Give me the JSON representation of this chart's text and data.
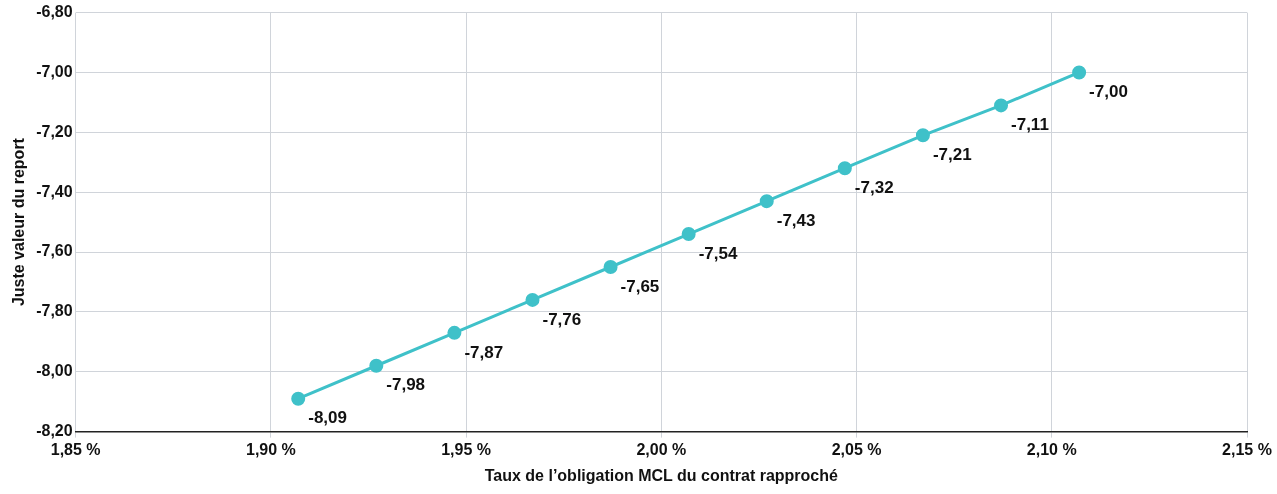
{
  "chart_data": {
    "type": "line",
    "xlabel": "Taux de l’obligation MCL du contrat rapproché",
    "ylabel": "Juste valeur du report",
    "x": [
      1.907,
      1.927,
      1.947,
      1.967,
      1.987,
      2.007,
      2.027,
      2.047,
      2.067,
      2.087,
      2.107
    ],
    "series": [
      {
        "color": "#3fc1c9",
        "values": [
          -8.09,
          -7.98,
          -7.87,
          -7.76,
          -7.65,
          -7.54,
          -7.43,
          -7.32,
          -7.21,
          -7.11,
          -7.0
        ],
        "value_labels": [
          "-8,09",
          "-7,98",
          "-7,87",
          "-7,76",
          "-7,65",
          "-7,54",
          "-7,43",
          "-7,32",
          "-7,21",
          "-7,11",
          "-7,00"
        ]
      }
    ],
    "xlim": [
      1.85,
      2.15
    ],
    "xticks": [
      {
        "value": 1.85,
        "label": "1,85 %"
      },
      {
        "value": 1.9,
        "label": "1,90 %"
      },
      {
        "value": 1.95,
        "label": "1,95 %"
      },
      {
        "value": 2.0,
        "label": "2,00 %"
      },
      {
        "value": 2.05,
        "label": "2,05 %"
      },
      {
        "value": 2.1,
        "label": "2,10 %"
      },
      {
        "value": 2.15,
        "label": "2,15 %"
      }
    ],
    "ylim": [
      -8.2,
      -6.8
    ],
    "yticks": [
      {
        "value": -8.2,
        "label": "-8,20"
      },
      {
        "value": -8.0,
        "label": "-8,00"
      },
      {
        "value": -7.8,
        "label": "-7,80"
      },
      {
        "value": -7.6,
        "label": "-7,60"
      },
      {
        "value": -7.4,
        "label": "-7,40"
      },
      {
        "value": -7.2,
        "label": "-7,20"
      },
      {
        "value": -7.0,
        "label": "-7,00"
      },
      {
        "value": -6.8,
        "label": "-6,80"
      }
    ],
    "grid": true,
    "legend": false,
    "marker": "circle",
    "line_style": "solid"
  }
}
